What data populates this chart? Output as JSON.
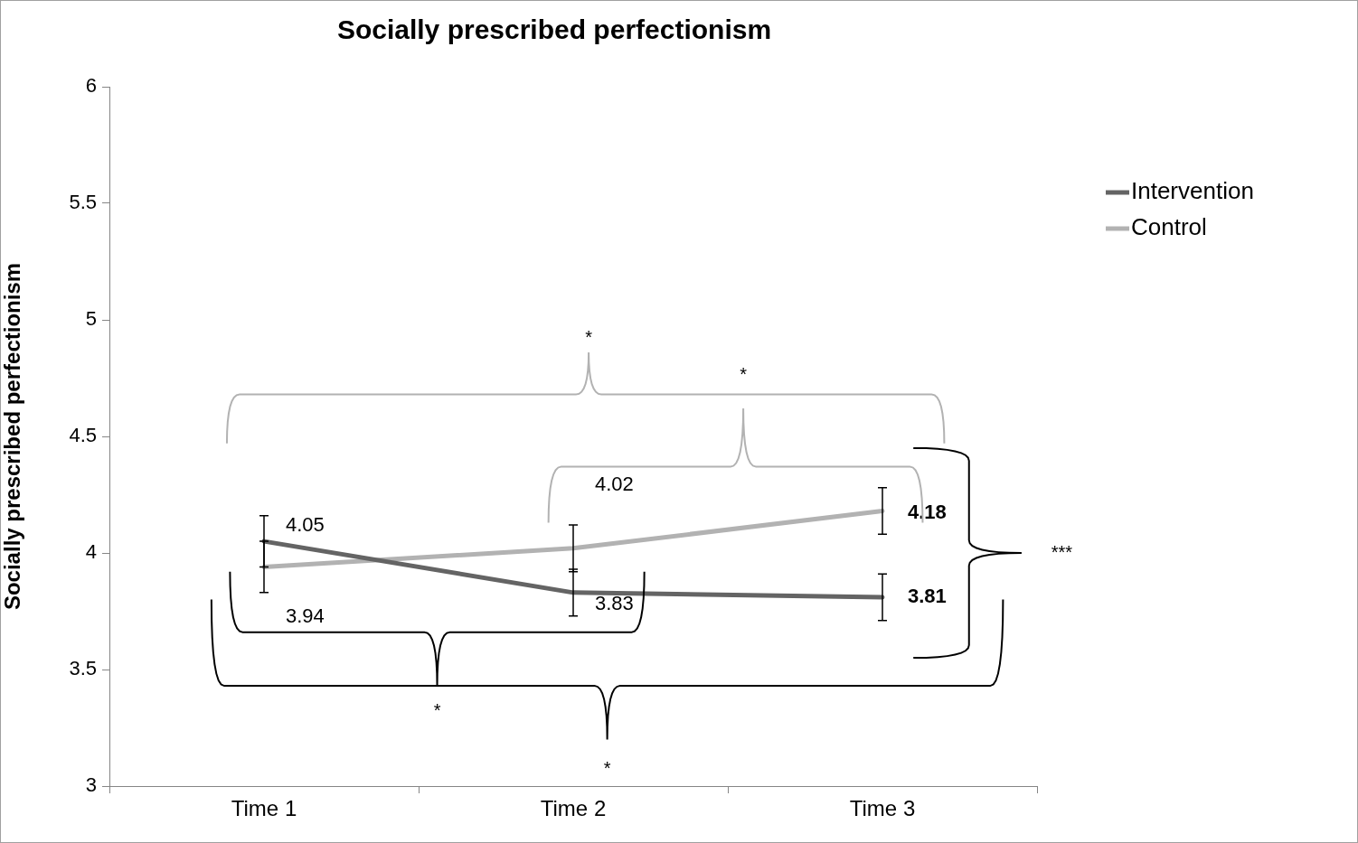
{
  "chart_data": {
    "type": "line",
    "title": "Socially prescribed perfectionism",
    "ylabel": "Socially prescribed perfectionism",
    "categories": [
      "Time 1",
      "Time 2",
      "Time 3"
    ],
    "series": [
      {
        "name": "Intervention",
        "color": "#646464",
        "values": [
          4.05,
          3.83,
          3.81
        ],
        "errors": [
          0.11,
          0.1,
          0.1
        ]
      },
      {
        "name": "Control",
        "color": "#b2b2b2",
        "values": [
          3.94,
          4.02,
          4.18
        ],
        "errors": [
          0.11,
          0.1,
          0.1
        ]
      }
    ],
    "ylim": [
      3,
      6
    ],
    "yticks": [
      3,
      3.5,
      4,
      4.5,
      5,
      5.5,
      6
    ],
    "grid": false,
    "legend": "right",
    "marker": "none",
    "line_style": "solid",
    "data_labels": true,
    "annotations": [
      "*",
      "*",
      "*",
      "*",
      "***"
    ]
  }
}
